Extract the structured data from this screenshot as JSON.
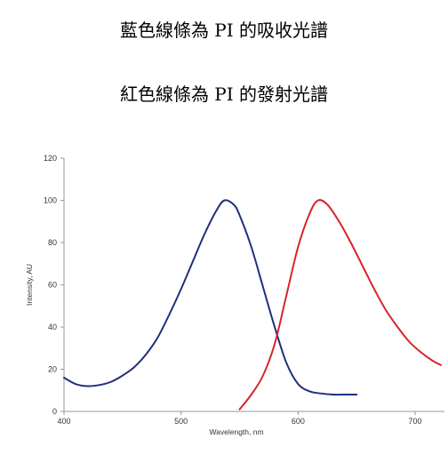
{
  "captions": {
    "absorption": "藍色線條為 PI 的吸收光譜",
    "emission": "紅色線條為 PI 的發射光譜"
  },
  "colors": {
    "absorption": "#1f2f7d",
    "emission": "#d8232a",
    "axis": "#9a9a9a"
  },
  "chart_data": {
    "type": "line",
    "title": "",
    "xlabel": "Wavelength, nm",
    "ylabel": "Intensity, AU",
    "xlim": [
      400,
      725
    ],
    "ylim": [
      0,
      120
    ],
    "x_ticks": [
      400,
      500,
      600,
      700
    ],
    "y_ticks": [
      0,
      20,
      40,
      60,
      80,
      100,
      120
    ],
    "series": [
      {
        "key": "absorption",
        "color": "#1f2f7d",
        "x": [
          400,
          410,
          420,
          430,
          440,
          450,
          460,
          470,
          480,
          490,
          500,
          510,
          520,
          530,
          537,
          545,
          550,
          560,
          570,
          580,
          590,
          600,
          610,
          620,
          630,
          640,
          650
        ],
        "y": [
          16,
          13,
          12,
          12.5,
          14,
          17,
          21,
          27,
          35,
          46,
          58,
          71,
          84,
          95,
          100,
          98,
          93,
          78,
          59,
          40,
          23,
          13,
          9.5,
          8.5,
          8,
          8,
          8
        ]
      },
      {
        "key": "emission",
        "color": "#d8232a",
        "x": [
          550,
          560,
          570,
          580,
          590,
          600,
          610,
          617,
          625,
          635,
          645,
          655,
          665,
          675,
          685,
          695,
          705,
          715,
          722
        ],
        "y": [
          1,
          8,
          17,
          32,
          55,
          78,
          94,
          100,
          98,
          90,
          80,
          69,
          58,
          48,
          40,
          33,
          28,
          24,
          22
        ]
      }
    ]
  }
}
